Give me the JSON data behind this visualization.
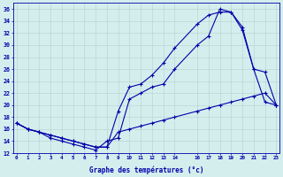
{
  "title": "Graphe des températures (°c)",
  "background_color": "#d4eeed",
  "grid_color": "#b8d8d6",
  "line_color": "#0000aa",
  "ylim": [
    12,
    37
  ],
  "yticks": [
    12,
    14,
    16,
    18,
    20,
    22,
    24,
    26,
    28,
    30,
    32,
    34,
    36
  ],
  "xticks": [
    0,
    1,
    2,
    3,
    4,
    5,
    6,
    7,
    8,
    9,
    10,
    11,
    12,
    13,
    14,
    16,
    17,
    18,
    19,
    20,
    21,
    22,
    23
  ],
  "xlim": [
    -0.3,
    23.3
  ],
  "line1_x": [
    0,
    1,
    2,
    3,
    4,
    5,
    6,
    7,
    8,
    9,
    10,
    11,
    12,
    13,
    14,
    16,
    17,
    18,
    19,
    20,
    21,
    22,
    23
  ],
  "line1_y": [
    17,
    16,
    15.5,
    15,
    14.5,
    14,
    13.5,
    13,
    13,
    19,
    23,
    23.5,
    25,
    27,
    29.5,
    33.5,
    35,
    35.5,
    35.5,
    33,
    26,
    20.5,
    20
  ],
  "line2_x": [
    0,
    1,
    2,
    3,
    4,
    5,
    6,
    7,
    8,
    9,
    10,
    11,
    12,
    13,
    14,
    16,
    17,
    18,
    19,
    20,
    21,
    22,
    23
  ],
  "line2_y": [
    17,
    16,
    15.5,
    14.5,
    14,
    13.5,
    13,
    12.5,
    14,
    14.5,
    21,
    22,
    23,
    23.5,
    26,
    30,
    31.5,
    36,
    35.5,
    32.5,
    26,
    25.5,
    20
  ],
  "line3_x": [
    0,
    1,
    2,
    3,
    4,
    5,
    6,
    7,
    8,
    9,
    10,
    11,
    12,
    13,
    14,
    16,
    17,
    18,
    19,
    20,
    21,
    22,
    23
  ],
  "line3_y": [
    17,
    16,
    15.5,
    15,
    14.5,
    14,
    13.5,
    13,
    13,
    15.5,
    16,
    16.5,
    17,
    17.5,
    18,
    19,
    19.5,
    20,
    20.5,
    21,
    21.5,
    22,
    20
  ]
}
